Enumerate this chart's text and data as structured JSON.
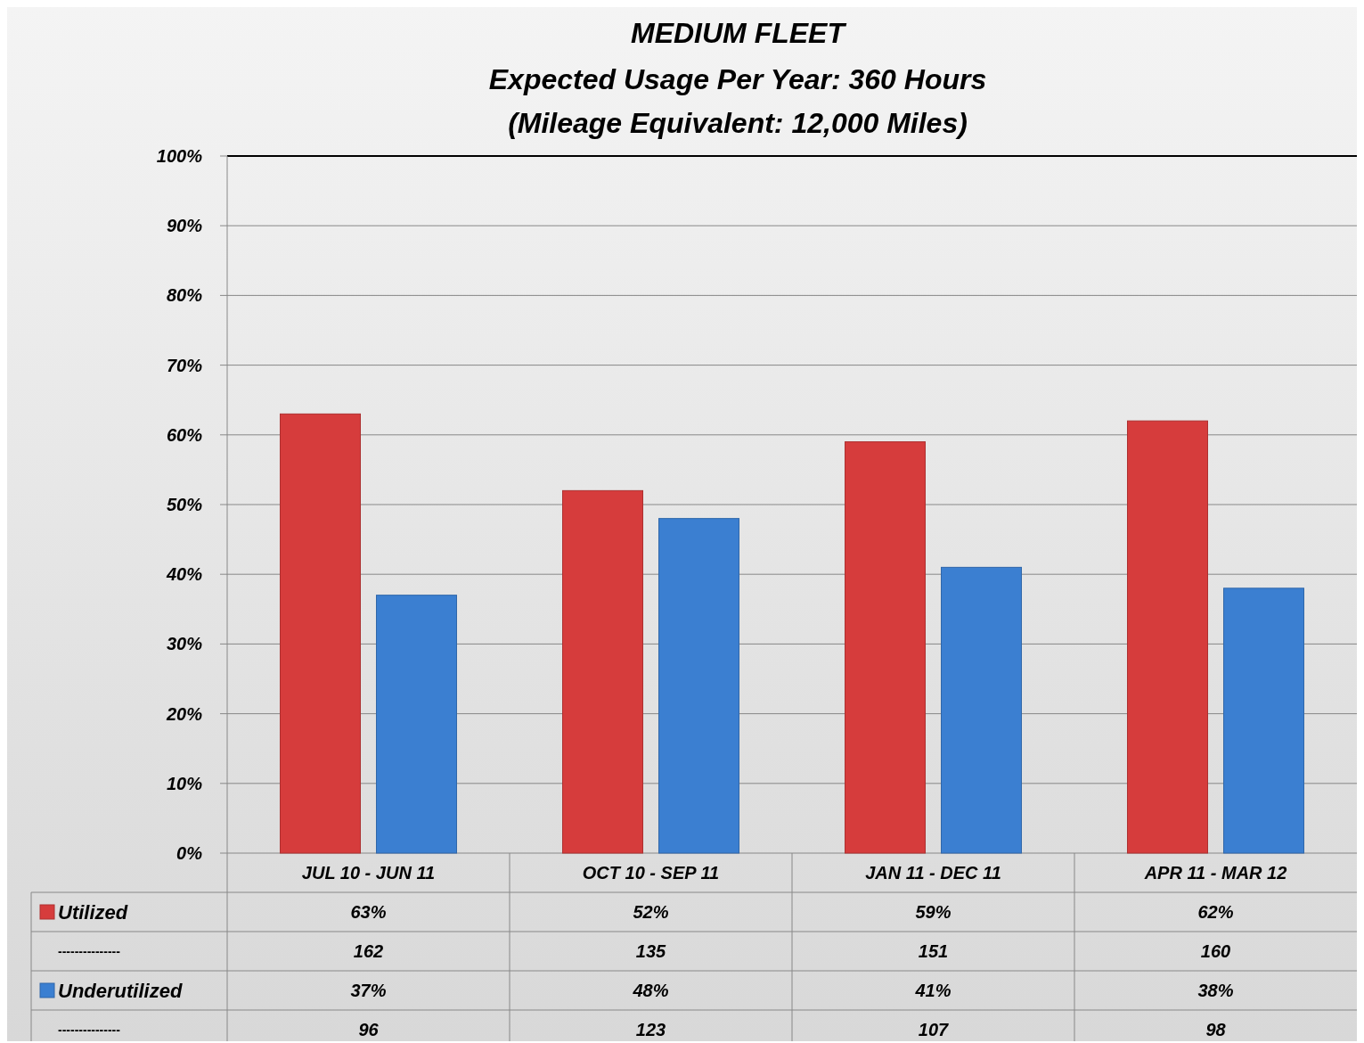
{
  "chart_data": {
    "type": "bar",
    "title": "MEDIUM FLEET",
    "subtitle": "Expected Usage Per Year: 360 Hours\n(Mileage Equivalent: 12,000 Miles)",
    "categories": [
      "JUL 10 - JUN 11",
      "OCT 10 - SEP 11",
      "JAN 11 - DEC 11",
      "APR 11 - MAR 12"
    ],
    "series": [
      {
        "name": "Utilized",
        "color": "#d63c3c",
        "values": [
          63,
          52,
          59,
          62
        ],
        "value_labels": [
          "63%",
          "52%",
          "59%",
          "62%"
        ]
      },
      {
        "name": "Underutilized",
        "color": "#3b7fd1",
        "values": [
          37,
          48,
          41,
          38
        ],
        "value_labels": [
          "37%",
          "48%",
          "41%",
          "38%"
        ]
      }
    ],
    "ylim": [
      0,
      100
    ],
    "yticks": [
      {
        "value": 0,
        "label": "0%"
      },
      {
        "value": 10,
        "label": "10%"
      },
      {
        "value": 20,
        "label": "20%"
      },
      {
        "value": 30,
        "label": "30%"
      },
      {
        "value": 40,
        "label": "40%"
      },
      {
        "value": 50,
        "label": "50%"
      },
      {
        "value": 60,
        "label": "60%"
      },
      {
        "value": 70,
        "label": "70%"
      },
      {
        "value": 80,
        "label": "80%"
      },
      {
        "value": 90,
        "label": "90%"
      },
      {
        "value": 100,
        "label": "100%"
      }
    ],
    "grid": "y",
    "legend": "bottom left",
    "annotations": [
      "---------------",
      "162",
      "135",
      "151",
      "160",
      "---------------",
      "96",
      "123",
      "107",
      "98"
    ]
  }
}
